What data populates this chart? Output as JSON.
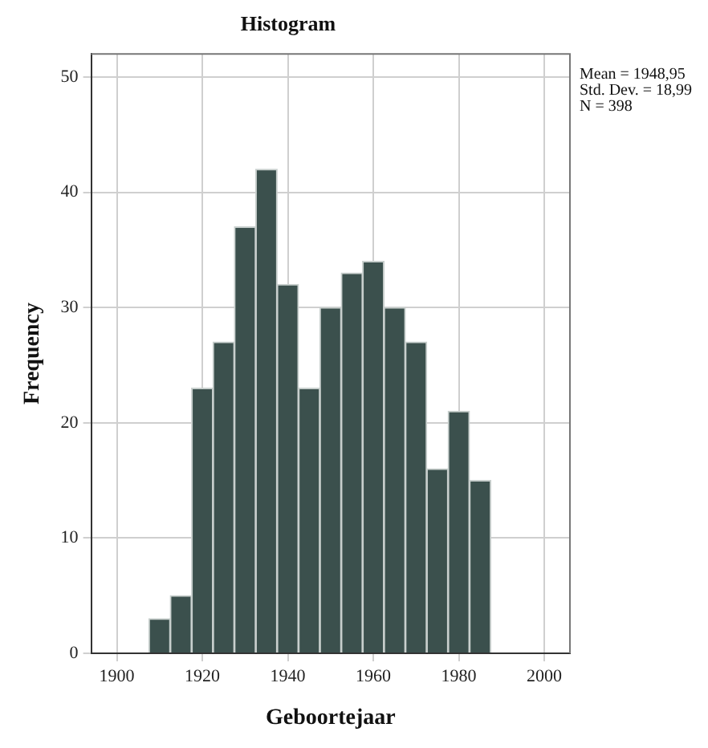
{
  "chart_data": {
    "type": "histogram",
    "title": "Histogram",
    "xlabel": "Geboortejaar",
    "ylabel": "Frequency",
    "bins": [
      1907.5,
      1912.5,
      1917.5,
      1922.5,
      1927.5,
      1932.5,
      1937.5,
      1942.5,
      1947.5,
      1952.5,
      1957.5,
      1962.5,
      1967.5,
      1972.5,
      1977.5,
      1982.5,
      1987.5
    ],
    "values": [
      3,
      5,
      23,
      27,
      37,
      42,
      32,
      23,
      30,
      33,
      34,
      30,
      27,
      16,
      21,
      15
    ],
    "color": "#3b504d",
    "xlim": [
      1894,
      2006
    ],
    "xticks": [
      1900,
      1920,
      1940,
      1960,
      1980,
      2000
    ],
    "ylim": [
      0,
      52
    ],
    "yticks": [
      0,
      10,
      20,
      30,
      40,
      50
    ],
    "grid": true,
    "legend": false,
    "annotations": [
      "Mean = 1948,95",
      "Std. Dev. = 18,99",
      "N = 398"
    ]
  }
}
